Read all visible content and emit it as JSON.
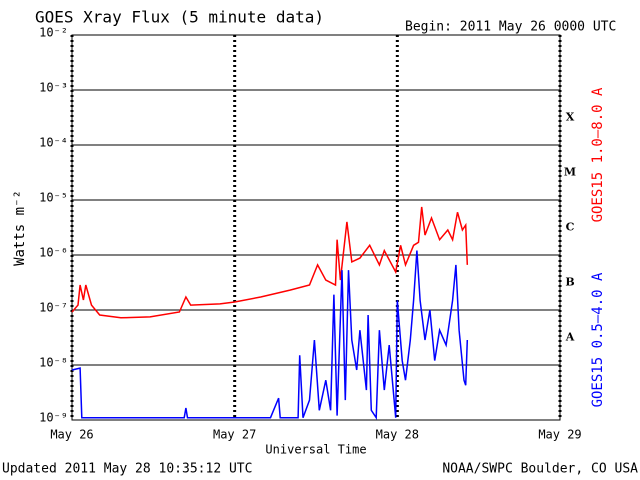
{
  "chart_data": {
    "type": "line",
    "title": "GOES Xray Flux (5 minute data)",
    "subtitle": "Begin:  2011 May 26 0000 UTC",
    "ylabel": "Watts m⁻²",
    "xlabel": "Universal Time",
    "footer_left": "Updated 2011 May 28 10:35:12 UTC",
    "footer_right": "NOAA/SWPC Boulder, CO USA",
    "log_y": true,
    "grid": true,
    "xgrid": true,
    "xlim": [
      0,
      3
    ],
    "xticks": [
      {
        "value": 0,
        "label": "May 26"
      },
      {
        "value": 1,
        "label": "May 27"
      },
      {
        "value": 2,
        "label": "May 28"
      },
      {
        "value": 3,
        "label": "May 29"
      }
    ],
    "ylim": [
      1e-09,
      0.01
    ],
    "yticks": [
      {
        "value": 1e-09,
        "label": "10⁻⁹"
      },
      {
        "value": 1e-08,
        "label": "10⁻⁸"
      },
      {
        "value": 1e-07,
        "label": "10⁻⁷"
      },
      {
        "value": 1e-06,
        "label": "10⁻⁶"
      },
      {
        "value": 1e-05,
        "label": "10⁻⁵"
      },
      {
        "value": 0.0001,
        "label": "10⁻⁴"
      },
      {
        "value": 0.001,
        "label": "10⁻³"
      },
      {
        "value": 0.01,
        "label": "10⁻²"
      }
    ],
    "class_labels": [
      {
        "label": "X",
        "value": 0.0001
      },
      {
        "label": "M",
        "value": 1e-05
      },
      {
        "label": "C",
        "value": 1e-06
      },
      {
        "label": "B",
        "value": 1e-07
      },
      {
        "label": "A",
        "value": 1e-08
      }
    ],
    "series": [
      {
        "name": "GOES15 1.0–8.0 A",
        "color": "#ff0000",
        "x": [
          0,
          0.037,
          0.05,
          0.07,
          0.085,
          0.12,
          0.17,
          0.3,
          0.48,
          0.66,
          0.7,
          0.73,
          0.91,
          1.0,
          1.16,
          1.34,
          1.46,
          1.51,
          1.56,
          1.62,
          1.63,
          1.65,
          1.69,
          1.72,
          1.77,
          1.83,
          1.89,
          1.92,
          1.99,
          2.02,
          2.05,
          2.1,
          2.13,
          2.15,
          2.17,
          2.21,
          2.26,
          2.31,
          2.34,
          2.37,
          2.4,
          2.42,
          2.43
        ],
        "values": [
          9.2e-08,
          1.23e-07,
          2.85e-07,
          1.52e-07,
          2.85e-07,
          1.23e-07,
          8.1e-08,
          7.2e-08,
          7.5e-08,
          9.2e-08,
          1.72e-07,
          1.23e-07,
          1.29e-07,
          1.4e-07,
          1.72e-07,
          2.3e-07,
          2.85e-07,
          6.6e-07,
          3.5e-07,
          2.85e-07,
          1.9e-06,
          3.5e-07,
          4e-06,
          7.5e-07,
          8.8e-07,
          1.5e-06,
          6.6e-07,
          1.2e-06,
          4.9e-07,
          1.5e-06,
          6.6e-07,
          1.5e-06,
          1.7e-06,
          7.5e-06,
          2.3e-06,
          4.7e-06,
          1.9e-06,
          2.85e-06,
          1.9e-06,
          6e-06,
          2.85e-06,
          3.5e-06,
          6.6e-07
        ]
      },
      {
        "name": "GOES15 0.5–4.0 A",
        "color": "#0000ff",
        "x": [
          0,
          0.05,
          0.06,
          0.17,
          0.69,
          0.7,
          0.71,
          1.22,
          1.27,
          1.28,
          1.39,
          1.4,
          1.42,
          1.46,
          1.49,
          1.52,
          1.56,
          1.59,
          1.61,
          1.63,
          1.66,
          1.68,
          1.7,
          1.72,
          1.75,
          1.77,
          1.81,
          1.82,
          1.84,
          1.87,
          1.89,
          1.92,
          1.95,
          1.99,
          2.0,
          2.03,
          2.05,
          2.08,
          2.1,
          2.12,
          2.14,
          2.17,
          2.2,
          2.23,
          2.26,
          2.3,
          2.34,
          2.36,
          2.38,
          2.41,
          2.42,
          2.43
        ],
        "values": [
          8.1e-09,
          8.8e-09,
          1.1e-09,
          1.1e-09,
          1.1e-09,
          1.65e-09,
          1.1e-09,
          1.1e-09,
          2.5e-09,
          1.1e-09,
          1.1e-09,
          1.5e-08,
          1.1e-09,
          2.3e-09,
          2.85e-08,
          1.5e-09,
          5.3e-09,
          1.5e-09,
          1.9e-07,
          1.2e-09,
          5.3e-07,
          2.3e-09,
          5.3e-07,
          2.85e-08,
          8.1e-09,
          4.3e-08,
          3.5e-09,
          8.1e-08,
          1.5e-09,
          1.1e-09,
          4.3e-08,
          3.5e-09,
          2.3e-08,
          1.1e-09,
          1.5e-07,
          1.2e-08,
          5.3e-09,
          2.85e-08,
          1.5e-07,
          1.2e-06,
          1.5e-07,
          2.85e-08,
          1e-07,
          1.2e-08,
          4.3e-08,
          2.3e-08,
          1.5e-07,
          6.6e-07,
          4.3e-08,
          5.3e-09,
          4.3e-09,
          2.85e-08
        ]
      }
    ]
  }
}
